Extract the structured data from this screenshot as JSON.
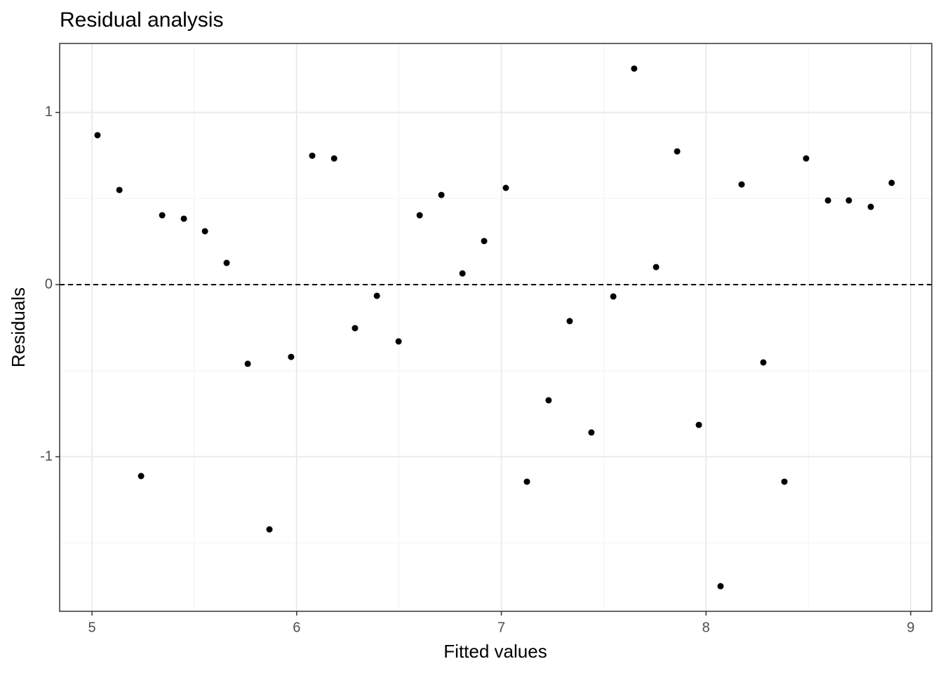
{
  "chart_data": {
    "type": "scatter",
    "title": "Residual analysis",
    "x_label": "Fitted values",
    "y_label": "Residuals",
    "x": [
      5.027,
      5.134,
      5.24,
      5.343,
      5.449,
      5.552,
      5.658,
      5.761,
      5.867,
      5.973,
      6.076,
      6.183,
      6.285,
      6.392,
      6.498,
      6.601,
      6.707,
      6.81,
      6.916,
      7.022,
      7.125,
      7.231,
      7.334,
      7.44,
      7.547,
      7.649,
      7.756,
      7.859,
      7.965,
      8.071,
      8.174,
      8.28,
      8.383,
      8.489,
      8.596,
      8.698,
      8.805,
      8.907
    ],
    "values": [
      0.868,
      0.55,
      -1.112,
      0.403,
      0.383,
      0.31,
      0.126,
      -0.46,
      -1.422,
      -0.42,
      0.749,
      0.733,
      -0.253,
      -0.065,
      -0.33,
      0.403,
      0.521,
      0.065,
      0.253,
      0.562,
      -1.145,
      -0.672,
      -0.212,
      -0.859,
      -0.069,
      1.255,
      0.102,
      0.774,
      -0.815,
      -1.752,
      0.582,
      -0.452,
      -1.145,
      0.733,
      0.489,
      0.489,
      0.452,
      0.591
    ],
    "color": "#000000",
    "xlim": [
      4.842,
      9.103
    ],
    "ylim": [
      -1.898,
      1.401
    ],
    "xticks": [
      5,
      6,
      7,
      8,
      9
    ],
    "yticks": [
      -1,
      0,
      1
    ],
    "minor_xticks": [
      5.5,
      6.5,
      7.5,
      8.5
    ],
    "minor_yticks": [
      -1.5,
      -0.5,
      0.5
    ],
    "hline": 0,
    "grid": true
  }
}
